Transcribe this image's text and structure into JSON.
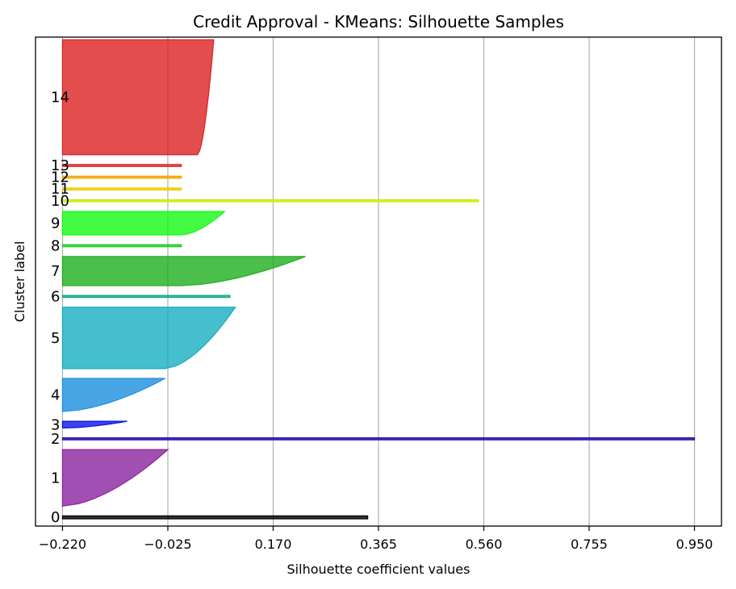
{
  "chart_data": {
    "type": "silhouette",
    "title": "Credit Approval - KMeans: Silhouette Samples",
    "xlabel": "Silhouette coefficient values",
    "ylabel": "Cluster label",
    "xlim": [
      -0.27,
      1.0
    ],
    "x_ticks": [
      -0.22,
      -0.025,
      0.17,
      0.365,
      0.56,
      0.755,
      0.95
    ],
    "x_tick_labels": [
      "−0.220",
      "−0.025",
      "0.170",
      "0.365",
      "0.560",
      "0.755",
      "0.950"
    ],
    "grid": "vertical",
    "legend": "none",
    "clusters": [
      {
        "label": "0",
        "size": 3,
        "max": 0.345,
        "min": -0.22,
        "color": "#000000"
      },
      {
        "label": "1",
        "size": 58,
        "max": -0.025,
        "min": -0.22,
        "color": "#8b23a0"
      },
      {
        "label": "2",
        "size": 1,
        "max": 0.95,
        "min": 0.95,
        "color": "#2a0aa6"
      },
      {
        "label": "3",
        "size": 7,
        "max": -0.1,
        "min": -0.22,
        "color": "#0a14e6"
      },
      {
        "label": "4",
        "size": 34,
        "max": -0.03,
        "min": -0.22,
        "color": "#1d8ee0"
      },
      {
        "label": "5",
        "size": 63,
        "max": 0.1,
        "min": -0.03,
        "color": "#17aec0"
      },
      {
        "label": "6",
        "size": 2,
        "max": 0.09,
        "min": 0.0,
        "color": "#13a88a"
      },
      {
        "label": "7",
        "size": 30,
        "max": 0.23,
        "min": 0.0,
        "color": "#1fae1f"
      },
      {
        "label": "8",
        "size": 1,
        "max": 0.0,
        "min": 0.0,
        "color": "#22cc22"
      },
      {
        "label": "9",
        "size": 24,
        "max": 0.08,
        "min": 0.0,
        "color": "#15fa15"
      },
      {
        "label": "10",
        "size": 1,
        "max": 0.55,
        "min": 0.55,
        "color": "#c8ee00"
      },
      {
        "label": "11",
        "size": 1,
        "max": 0.0,
        "min": 0.0,
        "color": "#eecc00"
      },
      {
        "label": "12",
        "size": 1,
        "max": 0.0,
        "min": 0.0,
        "color": "#eea800"
      },
      {
        "label": "13",
        "size": 1,
        "max": 0.0,
        "min": 0.0,
        "color": "#dd2222"
      },
      {
        "label": "14",
        "size": 118,
        "max": 0.06,
        "min": 0.03,
        "color": "#dc2020"
      }
    ]
  }
}
